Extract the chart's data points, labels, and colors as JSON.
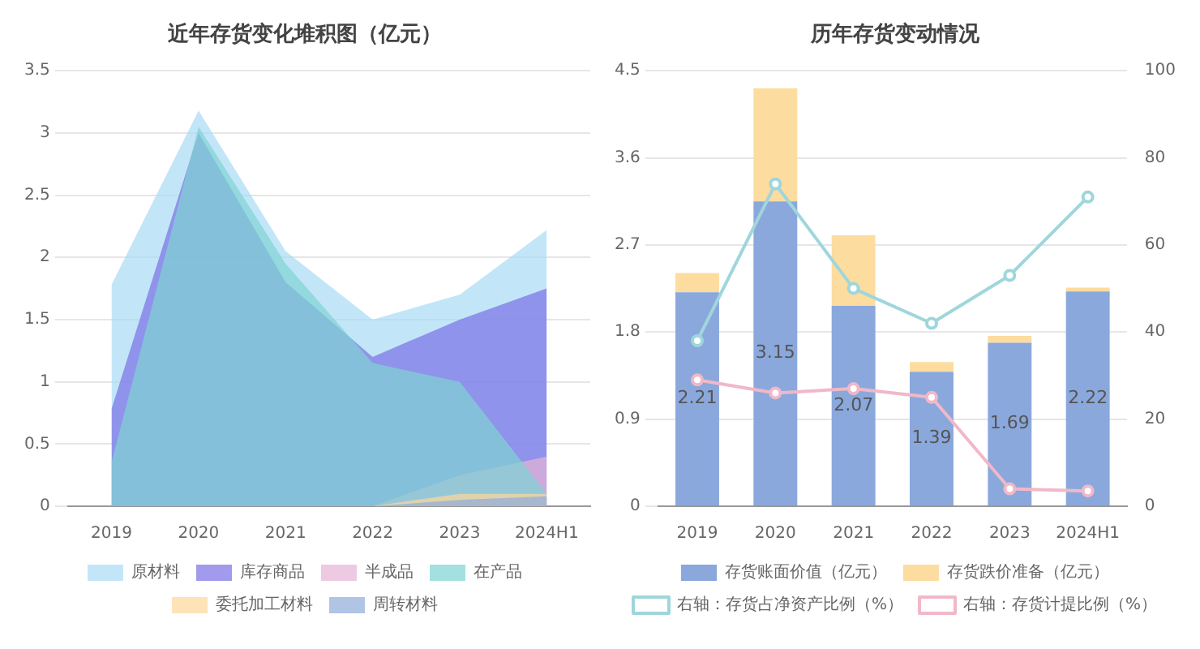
{
  "chart_data": [
    {
      "type": "area",
      "title": "近年存货变化堆积图（亿元）",
      "categories": [
        "2019",
        "2020",
        "2021",
        "2022",
        "2023",
        "2024H1"
      ],
      "series": [
        {
          "name": "原材料",
          "color": "#a8dcf5",
          "values": [
            1.78,
            3.18,
            2.05,
            1.5,
            1.7,
            2.22
          ]
        },
        {
          "name": "库存商品",
          "color": "#7a6fe6",
          "values": [
            0.78,
            3.0,
            1.8,
            1.2,
            1.5,
            1.75
          ]
        },
        {
          "name": "半成品",
          "color": "#e6b3d6",
          "values": [
            0,
            0,
            0,
            0,
            0.25,
            0.4
          ]
        },
        {
          "name": "在产品",
          "color": "#7fd3d3",
          "values": [
            0.35,
            3.05,
            1.95,
            1.15,
            1.0,
            0.1
          ]
        },
        {
          "name": "委托加工材料",
          "color": "#fdd79a",
          "values": [
            0,
            0,
            0,
            0,
            0.1,
            0.1
          ]
        },
        {
          "name": "周转材料",
          "color": "#8fabdc",
          "values": [
            0,
            0,
            0,
            0,
            0.05,
            0.08
          ]
        }
      ],
      "ylim": [
        0,
        3.5
      ],
      "yticks": [
        0,
        0.5,
        1,
        1.5,
        2,
        2.5,
        3,
        3.5
      ],
      "grid": "y",
      "legend": "bottom"
    },
    {
      "type": "bar",
      "title": "历年存货变动情况",
      "categories": [
        "2019",
        "2020",
        "2021",
        "2022",
        "2023",
        "2024H1"
      ],
      "stacked": true,
      "series": [
        {
          "name": "存货账面价值（亿元）",
          "color": "#8aa8dc",
          "values": [
            2.21,
            3.15,
            2.07,
            1.39,
            1.69,
            2.22
          ],
          "value_labels": [
            "2.21",
            "3.15",
            "2.07",
            "1.39",
            "1.69",
            "2.22"
          ]
        },
        {
          "name": "存货跌价准备（亿元）",
          "color": "#fddca0",
          "values": [
            0.2,
            1.17,
            0.73,
            0.1,
            0.07,
            0.04
          ]
        },
        {
          "name": "右轴：存货占净资产比例（%）",
          "type": "line",
          "axis": "y2",
          "color": "#9fd6dc",
          "values": [
            38,
            74,
            50,
            42,
            53,
            71
          ]
        },
        {
          "name": "右轴：存货计提比例（%）",
          "type": "line",
          "axis": "y2",
          "color": "#f0b8c8",
          "values": [
            29,
            26,
            27,
            25,
            4,
            3.5
          ]
        }
      ],
      "ylim": [
        0,
        4.5
      ],
      "yticks": [
        0,
        0.9,
        1.8,
        2.7,
        3.6,
        4.5
      ],
      "y2lim": [
        0,
        100
      ],
      "y2ticks": [
        0,
        20,
        40,
        60,
        80,
        100
      ],
      "grid": "y",
      "legend": "bottom",
      "marker": "circle"
    }
  ]
}
